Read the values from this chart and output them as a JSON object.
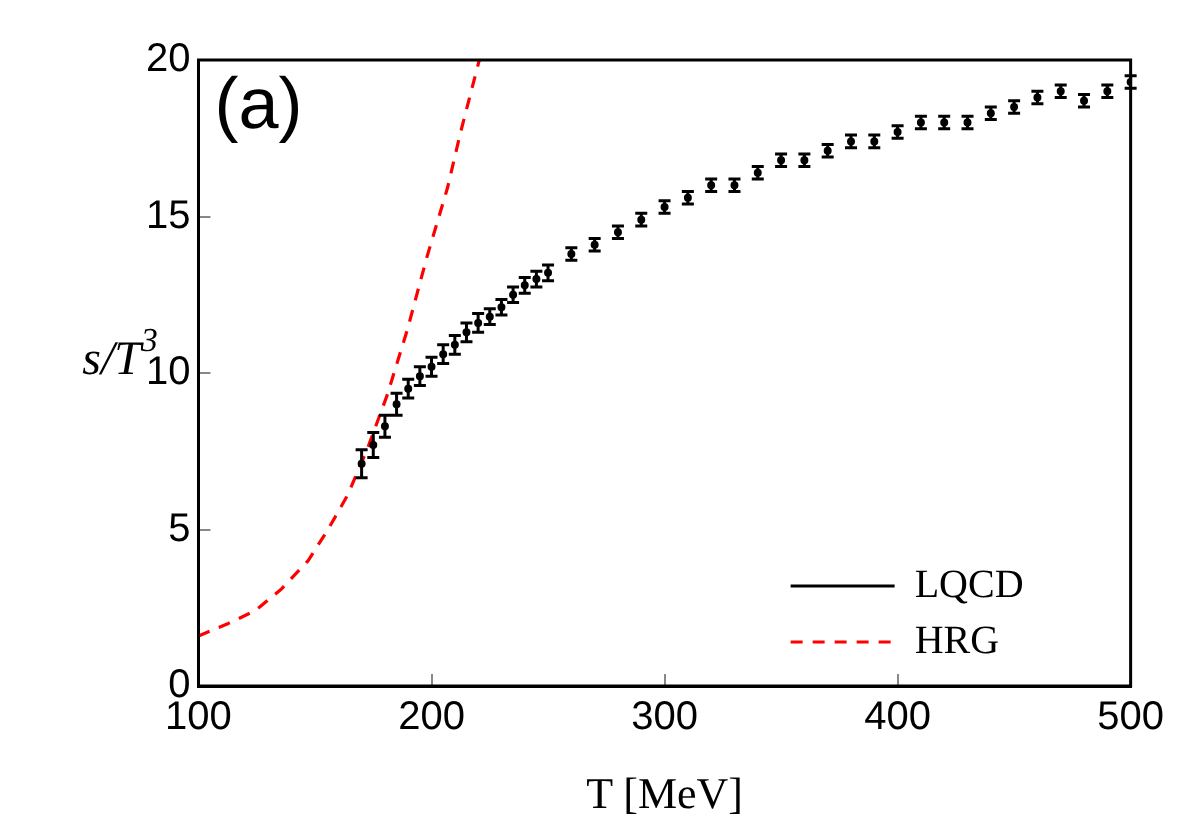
{
  "chart_data": {
    "type": "scatter",
    "xlabel": "T [MeV]",
    "ylabel": "s/T$^{3}$",
    "annotations": [
      "(a)"
    ],
    "xlim": [
      100,
      500
    ],
    "xticks": [
      100,
      200,
      300,
      400,
      500
    ],
    "ylim": [
      0,
      20
    ],
    "yticks": [
      0,
      5,
      10,
      15,
      20
    ],
    "grid": false,
    "legend": "bottom right",
    "series": [
      {
        "name": "LQCD",
        "type": "scatter",
        "color": "#000000",
        "x": [
          170,
          175,
          180,
          185,
          190,
          195,
          200,
          205,
          210,
          215,
          220,
          225,
          230,
          235,
          240,
          245,
          250,
          260,
          270,
          280,
          290,
          300,
          310,
          320,
          330,
          340,
          350,
          360,
          370,
          380,
          390,
          400,
          410,
          420,
          430,
          440,
          450,
          460,
          470,
          480,
          490,
          500
        ],
        "values": [
          7.1,
          7.7,
          8.3,
          9.0,
          9.5,
          9.9,
          10.2,
          10.6,
          10.9,
          11.3,
          11.6,
          11.8,
          12.1,
          12.5,
          12.8,
          13.0,
          13.2,
          13.8,
          14.1,
          14.5,
          14.9,
          15.3,
          15.6,
          16.0,
          16.0,
          16.4,
          16.8,
          16.8,
          17.1,
          17.4,
          17.4,
          17.7,
          18.0,
          18.0,
          18.0,
          18.3,
          18.5,
          18.8,
          19.0,
          18.7,
          19.0,
          19.3
        ],
        "errors": [
          0.45,
          0.4,
          0.35,
          0.35,
          0.3,
          0.3,
          0.3,
          0.3,
          0.3,
          0.3,
          0.3,
          0.25,
          0.25,
          0.25,
          0.25,
          0.25,
          0.25,
          0.2,
          0.2,
          0.2,
          0.2,
          0.2,
          0.2,
          0.2,
          0.2,
          0.2,
          0.2,
          0.2,
          0.2,
          0.2,
          0.2,
          0.2,
          0.2,
          0.2,
          0.2,
          0.2,
          0.2,
          0.2,
          0.2,
          0.2,
          0.2,
          0.2
        ]
      },
      {
        "name": "HRG",
        "type": "line",
        "color": "#ff0000",
        "line_style": "dashed",
        "x": [
          100,
          112.8,
          124.2,
          135.6,
          147,
          155.6,
          164,
          172.6,
          181,
          189.7,
          198,
          206.8,
          212.5,
          220.5
        ],
        "values": [
          1.6,
          2.0,
          2.4,
          3.1,
          4.0,
          5.0,
          6.1,
          7.6,
          9.3,
          11.4,
          13.7,
          15.9,
          17.7,
          20.0
        ]
      }
    ]
  }
}
